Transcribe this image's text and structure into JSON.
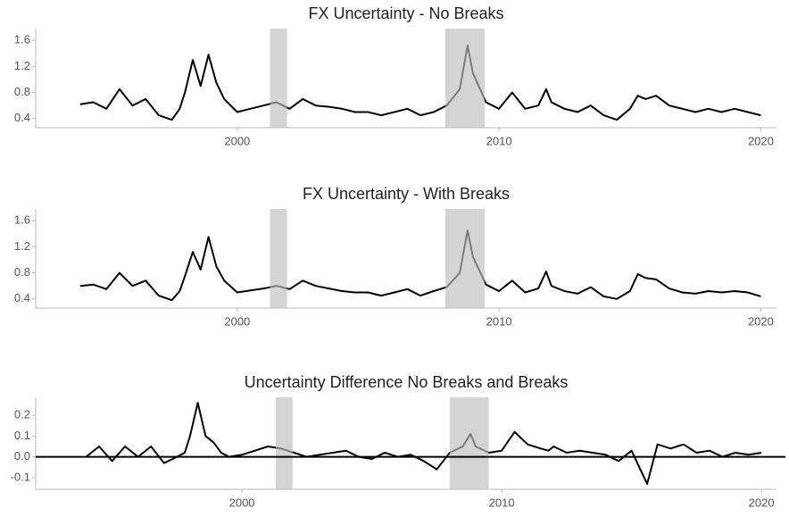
{
  "chart_data": [
    {
      "type": "line",
      "title": "FX Uncertainty - No Breaks",
      "color": "#000000",
      "shade_color": "#bdbdbd",
      "x": [
        1994.0,
        1994.5,
        1995.0,
        1995.5,
        1996.0,
        1996.5,
        1997.0,
        1997.5,
        1997.8,
        1998.0,
        1998.3,
        1998.6,
        1998.9,
        1999.2,
        1999.5,
        2000.0,
        2000.5,
        2001.0,
        2001.5,
        2002.0,
        2002.5,
        2003.0,
        2003.5,
        2004.0,
        2004.5,
        2005.0,
        2005.5,
        2006.0,
        2006.5,
        2007.0,
        2007.5,
        2008.0,
        2008.5,
        2008.8,
        2009.0,
        2009.5,
        2010.0,
        2010.5,
        2011.0,
        2011.5,
        2011.8,
        2012.0,
        2012.5,
        2013.0,
        2013.5,
        2014.0,
        2014.5,
        2015.0,
        2015.3,
        2015.6,
        2016.0,
        2016.5,
        2017.0,
        2017.5,
        2018.0,
        2018.5,
        2019.0,
        2019.5,
        2020.0
      ],
      "values": [
        0.62,
        0.65,
        0.55,
        0.85,
        0.6,
        0.7,
        0.45,
        0.38,
        0.55,
        0.8,
        1.3,
        0.9,
        1.38,
        0.95,
        0.7,
        0.5,
        0.55,
        0.6,
        0.65,
        0.55,
        0.7,
        0.6,
        0.58,
        0.55,
        0.5,
        0.5,
        0.45,
        0.5,
        0.55,
        0.45,
        0.5,
        0.6,
        0.85,
        1.52,
        1.1,
        0.65,
        0.55,
        0.8,
        0.55,
        0.6,
        0.85,
        0.65,
        0.55,
        0.5,
        0.6,
        0.45,
        0.38,
        0.55,
        0.75,
        0.7,
        0.75,
        0.6,
        0.55,
        0.5,
        0.55,
        0.5,
        0.55,
        0.5,
        0.45
      ],
      "shaded_periods": [
        [
          2001.25,
          2001.9
        ],
        [
          2007.95,
          2009.45
        ]
      ],
      "xlim": [
        1992.3,
        2020.6
      ],
      "ylim": [
        0.26,
        1.78
      ],
      "xticks": [
        2000,
        2010,
        2020
      ],
      "yticks": [
        0.4,
        0.8,
        1.2,
        1.6
      ]
    },
    {
      "type": "line",
      "title": "FX Uncertainty - With Breaks",
      "color": "#000000",
      "shade_color": "#bdbdbd",
      "x": [
        1994.0,
        1994.5,
        1995.0,
        1995.5,
        1996.0,
        1996.5,
        1997.0,
        1997.5,
        1997.8,
        1998.0,
        1998.3,
        1998.6,
        1998.9,
        1999.2,
        1999.5,
        2000.0,
        2000.5,
        2001.0,
        2001.5,
        2002.0,
        2002.5,
        2003.0,
        2003.5,
        2004.0,
        2004.5,
        2005.0,
        2005.5,
        2006.0,
        2006.5,
        2007.0,
        2007.5,
        2008.0,
        2008.5,
        2008.8,
        2009.0,
        2009.5,
        2010.0,
        2010.5,
        2011.0,
        2011.5,
        2011.8,
        2012.0,
        2012.5,
        2013.0,
        2013.5,
        2014.0,
        2014.5,
        2015.0,
        2015.3,
        2015.6,
        2016.0,
        2016.5,
        2017.0,
        2017.5,
        2018.0,
        2018.5,
        2019.0,
        2019.5,
        2020.0
      ],
      "values": [
        0.6,
        0.62,
        0.55,
        0.8,
        0.6,
        0.68,
        0.45,
        0.38,
        0.52,
        0.75,
        1.12,
        0.85,
        1.35,
        0.9,
        0.68,
        0.5,
        0.53,
        0.56,
        0.6,
        0.55,
        0.68,
        0.6,
        0.56,
        0.52,
        0.5,
        0.5,
        0.45,
        0.5,
        0.55,
        0.45,
        0.52,
        0.58,
        0.8,
        1.45,
        1.05,
        0.62,
        0.52,
        0.68,
        0.5,
        0.56,
        0.82,
        0.6,
        0.52,
        0.48,
        0.58,
        0.44,
        0.4,
        0.52,
        0.78,
        0.72,
        0.7,
        0.56,
        0.5,
        0.48,
        0.52,
        0.5,
        0.52,
        0.5,
        0.44
      ],
      "shaded_periods": [
        [
          2001.25,
          2001.9
        ],
        [
          2007.95,
          2009.45
        ]
      ],
      "xlim": [
        1992.3,
        2020.6
      ],
      "ylim": [
        0.26,
        1.78
      ],
      "xticks": [
        2000,
        2010,
        2020
      ],
      "yticks": [
        0.4,
        0.8,
        1.2,
        1.6
      ]
    },
    {
      "type": "line",
      "title": "Uncertainty Difference No Breaks and Breaks",
      "color": "#000000",
      "shade_color": "#bdbdbd",
      "hline": 0,
      "x": [
        1994.0,
        1994.5,
        1995.0,
        1995.5,
        1996.0,
        1996.5,
        1997.0,
        1997.5,
        1997.8,
        1998.0,
        1998.3,
        1998.6,
        1998.9,
        1999.2,
        1999.5,
        2000.0,
        2000.5,
        2001.0,
        2001.5,
        2002.0,
        2002.5,
        2003.0,
        2003.5,
        2004.0,
        2004.5,
        2005.0,
        2005.5,
        2006.0,
        2006.5,
        2007.0,
        2007.5,
        2008.0,
        2008.5,
        2008.8,
        2009.0,
        2009.5,
        2010.0,
        2010.5,
        2011.0,
        2011.5,
        2011.8,
        2012.0,
        2012.5,
        2013.0,
        2013.5,
        2014.0,
        2014.5,
        2015.0,
        2015.3,
        2015.6,
        2016.0,
        2016.5,
        2017.0,
        2017.5,
        2018.0,
        2018.5,
        2019.0,
        2019.5,
        2020.0
      ],
      "values": [
        0.0,
        0.05,
        -0.02,
        0.05,
        0.0,
        0.05,
        -0.03,
        0.0,
        0.02,
        0.1,
        0.26,
        0.1,
        0.07,
        0.02,
        0.0,
        0.01,
        0.03,
        0.05,
        0.04,
        0.02,
        0.0,
        0.01,
        0.02,
        0.03,
        0.0,
        -0.01,
        0.02,
        0.0,
        0.01,
        -0.02,
        -0.06,
        0.02,
        0.05,
        0.11,
        0.05,
        0.02,
        0.03,
        0.12,
        0.06,
        0.04,
        0.03,
        0.05,
        0.02,
        0.03,
        0.02,
        0.01,
        -0.02,
        0.03,
        -0.05,
        -0.13,
        0.06,
        0.04,
        0.06,
        0.02,
        0.03,
        0.0,
        0.02,
        0.01,
        0.02
      ],
      "shaded_periods": [
        [
          2001.3,
          2001.95
        ],
        [
          2008.0,
          2009.5
        ]
      ],
      "xlim": [
        1992.06,
        2020.58
      ],
      "ylim": [
        -0.156,
        0.286
      ],
      "xticks": [
        2000,
        2010,
        2020
      ],
      "yticks": [
        -0.1,
        {
          "value": 0,
          "label": "0.0"
        },
        0.1,
        0.2
      ]
    }
  ]
}
